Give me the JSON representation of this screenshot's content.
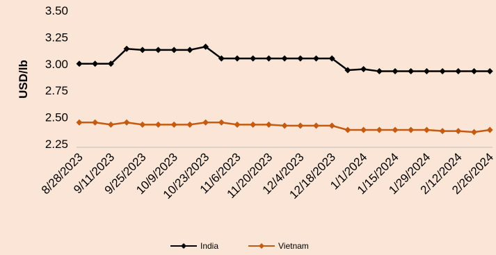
{
  "chart_data": {
    "type": "line",
    "ylabel": "USD/lb",
    "ylim": [
      2.25,
      3.5
    ],
    "yticks": [
      2.25,
      2.5,
      2.75,
      3.0,
      3.25,
      3.5
    ],
    "ytick_labels": [
      "2.25",
      "2.50",
      "2.75",
      "3.00",
      "3.25",
      "3.50"
    ],
    "x": [
      "8/28/2023",
      "9/4/2023",
      "9/11/2023",
      "9/18/2023",
      "9/25/2023",
      "10/2/2023",
      "10/9/2023",
      "10/16/2023",
      "10/23/2023",
      "10/30/2023",
      "11/6/2023",
      "11/13/2023",
      "11/20/2023",
      "11/27/2023",
      "12/4/2023",
      "12/11/2023",
      "12/18/2023",
      "12/25/2023",
      "1/1/2024",
      "1/8/2024",
      "1/15/2024",
      "1/22/2024",
      "1/29/2024",
      "2/5/2024",
      "2/12/2024",
      "2/19/2024",
      "2/26/2024"
    ],
    "x_tick_labels": [
      "8/28/2023",
      "9/11/2023",
      "9/25/2023",
      "10/9/2023",
      "10/23/2023",
      "11/6/2023",
      "11/20/2023",
      "12/4/2023",
      "12/18/2023",
      "1/1/2024",
      "1/15/2024",
      "1/29/2024",
      "2/12/2024",
      "2/26/2024"
    ],
    "grid": false,
    "legend_position": "bottom",
    "series": [
      {
        "name": "India",
        "color": "#000000",
        "marker": "diamond",
        "values": [
          3.0,
          3.0,
          3.0,
          3.14,
          3.13,
          3.13,
          3.13,
          3.13,
          3.16,
          3.05,
          3.05,
          3.05,
          3.05,
          3.05,
          3.05,
          3.05,
          3.05,
          2.94,
          2.95,
          2.93,
          2.93,
          2.93,
          2.93,
          2.93,
          2.93,
          2.93,
          2.93
        ]
      },
      {
        "name": "Vietnam",
        "color": "#c55a11",
        "marker": "diamond",
        "values": [
          2.45,
          2.45,
          2.43,
          2.45,
          2.43,
          2.43,
          2.43,
          2.43,
          2.45,
          2.45,
          2.43,
          2.43,
          2.43,
          2.42,
          2.42,
          2.42,
          2.42,
          2.38,
          2.38,
          2.38,
          2.38,
          2.38,
          2.38,
          2.37,
          2.37,
          2.36,
          2.38
        ]
      }
    ]
  }
}
